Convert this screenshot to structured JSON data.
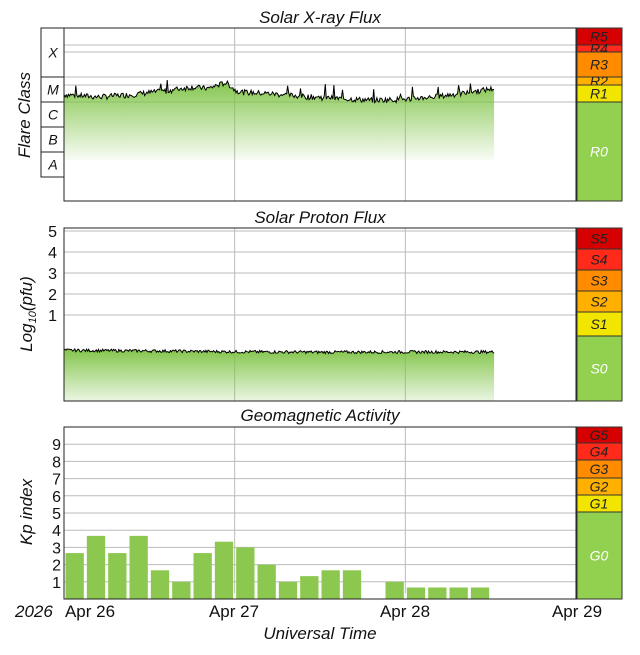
{
  "xray": {
    "title": "Solar X-ray Flux",
    "ylabel": "Flare Class",
    "classes": [
      "X",
      "M",
      "C",
      "B",
      "A"
    ],
    "scale": [
      {
        "label": "R5",
        "color": "#d60000"
      },
      {
        "label": "R4",
        "color": "#ff2a1a"
      },
      {
        "label": "R3",
        "color": "#ff8c00"
      },
      {
        "label": "R2",
        "color": "#ffb000"
      },
      {
        "label": "R1",
        "color": "#f2e600"
      },
      {
        "label": "R0",
        "color": "#92d050"
      }
    ]
  },
  "proton": {
    "title": "Solar Proton Flux",
    "ylabel_main": "Log",
    "ylabel_sub": "10",
    "ylabel_rest": "(pfu)",
    "ticks": [
      "5",
      "4",
      "3",
      "2",
      "1"
    ],
    "scale": [
      {
        "label": "S5",
        "color": "#d60000"
      },
      {
        "label": "S4",
        "color": "#ff2a1a"
      },
      {
        "label": "S3",
        "color": "#ff8c00"
      },
      {
        "label": "S2",
        "color": "#ffb000"
      },
      {
        "label": "S1",
        "color": "#f2e600"
      },
      {
        "label": "S0",
        "color": "#92d050"
      }
    ]
  },
  "geomag": {
    "title": "Geomagnetic Activity",
    "ylabel": "Kp index",
    "ticks": [
      "9",
      "8",
      "7",
      "6",
      "5",
      "4",
      "3",
      "2",
      "1"
    ],
    "scale": [
      {
        "label": "G5",
        "color": "#d60000"
      },
      {
        "label": "G4",
        "color": "#ff2a1a"
      },
      {
        "label": "G3",
        "color": "#ff8c00"
      },
      {
        "label": "G2",
        "color": "#ffb000"
      },
      {
        "label": "G1",
        "color": "#f2e600"
      },
      {
        "label": "G0",
        "color": "#92d050"
      }
    ]
  },
  "time_axis": {
    "year": "2026",
    "ticks": [
      "Apr 26",
      "Apr 27",
      "Apr 28",
      "Apr 29"
    ],
    "xlabel": "Universal Time"
  },
  "colors": {
    "bar_fill": "#8cc850",
    "flux_line": "#000000",
    "grid": "#bbbbbb"
  },
  "chart_data": [
    {
      "type": "area",
      "title": "Solar X-ray Flux",
      "ylabel": "Flare Class",
      "yscale": "log",
      "y_unit": "W/m²",
      "x_range_days": [
        0,
        3
      ],
      "x_tick_labels": [
        "Apr 26",
        "Apr 27",
        "Apr 28",
        "Apr 29"
      ],
      "class_thresholds": {
        "A": 1e-08,
        "B": 1e-07,
        "C": 1e-06,
        "M": 1e-05,
        "X": 0.0001
      },
      "x": [
        0.0,
        0.2,
        0.4,
        0.6,
        0.75,
        0.85,
        0.95,
        1.0,
        1.05,
        1.2,
        1.4,
        1.6,
        1.8,
        2.0,
        2.2,
        2.35,
        2.45,
        2.52
      ],
      "y": [
        2e-06,
        1.6e-06,
        2e-06,
        2.8e-06,
        4e-06,
        3.5e-06,
        6e-06,
        3e-06,
        2.5e-06,
        2.2e-06,
        1.7e-06,
        1.4e-06,
        1.2e-06,
        1.3e-06,
        1.7e-06,
        2.3e-06,
        3e-06,
        3.5e-06
      ]
    },
    {
      "type": "area",
      "title": "Solar Proton Flux",
      "ylabel": "Log10(pfu)",
      "ylim": [
        -1.6,
        6
      ],
      "x_range_days": [
        0,
        3
      ],
      "x_tick_labels": [
        "Apr 26",
        "Apr 27",
        "Apr 28",
        "Apr 29"
      ],
      "x": [
        0.0,
        0.5,
        1.0,
        1.5,
        2.0,
        2.52
      ],
      "y": [
        -0.68,
        -0.71,
        -0.75,
        -0.77,
        -0.76,
        -0.76
      ]
    },
    {
      "type": "bar",
      "title": "Geomagnetic Activity",
      "ylabel": "Kp index",
      "ylim": [
        0,
        10
      ],
      "bin_hours": 3,
      "x_tick_labels": [
        "Apr 26",
        "Apr 27",
        "Apr 28",
        "Apr 29"
      ],
      "values": [
        2.67,
        3.67,
        2.67,
        3.67,
        1.67,
        1.0,
        2.67,
        3.33,
        3.0,
        2.0,
        1.0,
        1.33,
        1.67,
        1.67,
        null,
        1.0,
        0.67,
        0.67,
        0.67,
        0.67
      ]
    }
  ]
}
